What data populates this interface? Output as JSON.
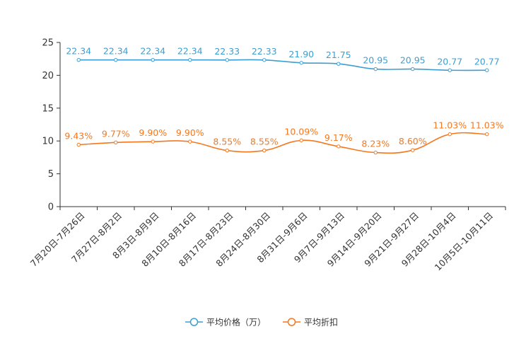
{
  "chart_data": {
    "type": "line",
    "title": "",
    "xlabel": "",
    "ylabel": "",
    "ylim": [
      0,
      25
    ],
    "yticks": [
      0,
      5,
      10,
      15,
      20,
      25
    ],
    "grid": false,
    "legend_position": "bottom-center",
    "categories": [
      "7月20日-7月26日",
      "7月27日-8月2日",
      "8月3日-8月9日",
      "8月10日-8月16日",
      "8月17日-8月23日",
      "8月24日-8月30日",
      "8月31日-9月6日",
      "9月7日-9月13日",
      "9月14日-9月20日",
      "9月21日-9月27日",
      "9月28日-10月4日",
      "10月5日-10月11日"
    ],
    "series": [
      {
        "name": "平均价格（万）",
        "color": "#3d9fd1",
        "values": [
          22.34,
          22.34,
          22.34,
          22.34,
          22.33,
          22.33,
          21.9,
          21.75,
          20.95,
          20.95,
          20.77,
          20.77
        ],
        "labels": [
          "22.34",
          "22.34",
          "22.34",
          "22.34",
          "22.33",
          "22.33",
          "21.90",
          "21.75",
          "20.95",
          "20.95",
          "20.77",
          "20.77"
        ]
      },
      {
        "name": "平均折扣",
        "color": "#f5781e",
        "values": [
          9.43,
          9.77,
          9.9,
          9.9,
          8.55,
          8.55,
          10.09,
          9.17,
          8.23,
          8.6,
          11.03,
          11.03
        ],
        "labels": [
          "9.43%",
          "9.77%",
          "9.90%",
          "9.90%",
          "8.55%",
          "8.55%",
          "10.09%",
          "9.17%",
          "8.23%",
          "8.60%",
          "11.03%",
          "11.03%"
        ]
      }
    ]
  }
}
